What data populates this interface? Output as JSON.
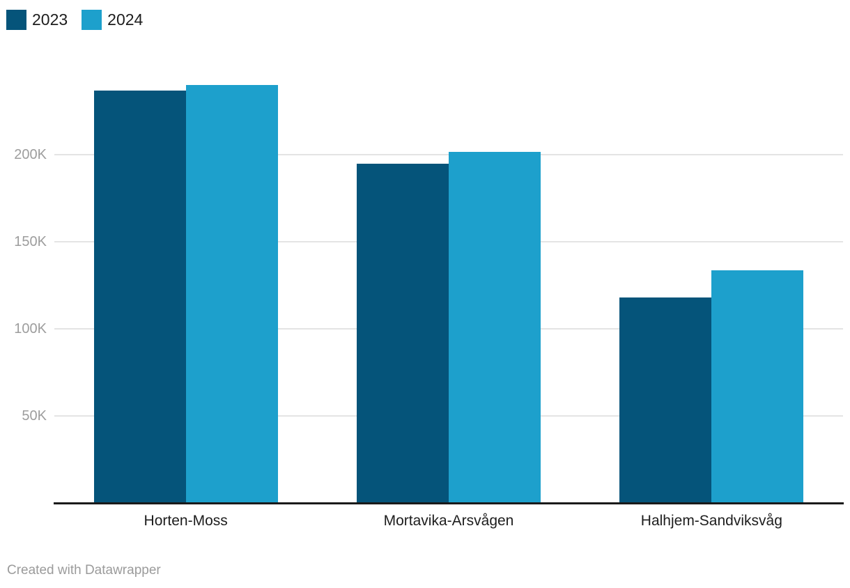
{
  "chart_data": {
    "type": "bar",
    "title": "",
    "xlabel": "",
    "ylabel": "",
    "categories": [
      "Horten-Moss",
      "Mortavika-Arsvågen",
      "Halhjem-Sandviksvåg"
    ],
    "series": [
      {
        "name": "2023",
        "color": "#05547a",
        "values": [
          237000,
          195000,
          118000
        ]
      },
      {
        "name": "2024",
        "color": "#1da0cc",
        "values": [
          240000,
          201500,
          133500
        ]
      }
    ],
    "y_ticks": [
      {
        "value": 50000,
        "label": "50K"
      },
      {
        "value": 100000,
        "label": "100K"
      },
      {
        "value": 150000,
        "label": "150K"
      },
      {
        "value": 200000,
        "label": "200K"
      }
    ],
    "ylim": [
      0,
      250000
    ],
    "grid": true,
    "legend_position": "top-left"
  },
  "legend": {
    "items": [
      {
        "label": "2023",
        "color": "#05547a"
      },
      {
        "label": "2024",
        "color": "#1da0cc"
      }
    ]
  },
  "footer": {
    "credit": "Created with Datawrapper"
  },
  "colors": {
    "background": "#ffffff",
    "gridline": "#e4e4e4",
    "axis_line": "#1a1a1a",
    "y_tick_label": "#9d9d9d",
    "category_label": "#1d1d1d",
    "footer_text": "#9b9b9b"
  }
}
